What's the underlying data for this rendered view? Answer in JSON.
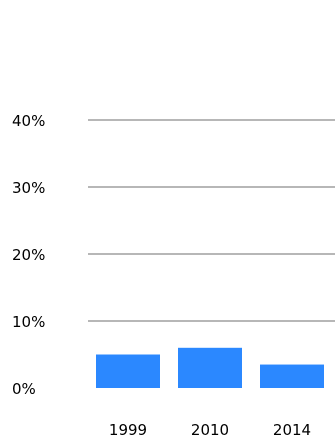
{
  "colors": {
    "bar": "#2B88FF",
    "gridline": "#8C8C8C",
    "text": "#000000",
    "background": "#FFFFFF"
  },
  "chart_data": {
    "type": "bar",
    "categories": [
      "1999",
      "2010",
      "2014"
    ],
    "values": [
      5,
      6,
      3.5
    ],
    "title": "",
    "xlabel": "",
    "ylabel": "",
    "ylim": [
      0,
      40
    ],
    "y_ticks": [
      0,
      10,
      20,
      30,
      40
    ],
    "y_tick_labels": [
      "0%",
      "10%",
      "20%",
      "30%",
      "40%"
    ],
    "grid": true,
    "legend": "none"
  }
}
